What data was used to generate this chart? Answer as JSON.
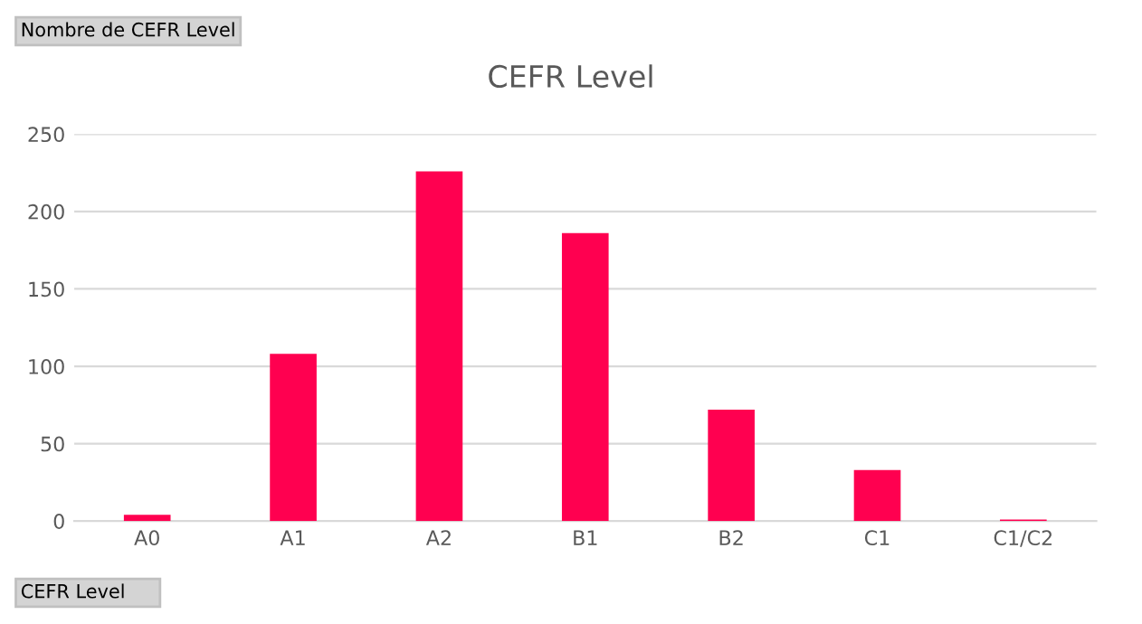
{
  "chart_data": {
    "type": "bar",
    "title": "CEFR Level",
    "categories": [
      "A0",
      "A1",
      "A2",
      "B1",
      "B2",
      "C1",
      "C1/C2"
    ],
    "values": [
      4,
      108,
      226,
      186,
      72,
      33,
      1
    ],
    "color": "#ff0050",
    "ylim": [
      0,
      250
    ],
    "yticks": [
      0,
      50,
      100,
      150,
      200,
      250
    ],
    "grid": "y",
    "annotations": [
      "Nombre de CEFR Level",
      "CEFR Level"
    ]
  }
}
